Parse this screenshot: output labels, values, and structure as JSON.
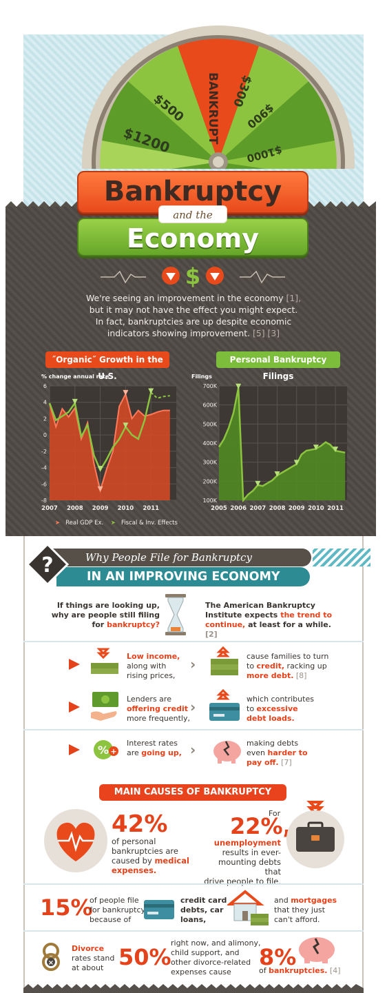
{
  "header": {
    "wheel_labels": [
      "BANKRUPT",
      "$1200",
      "$500",
      "$300",
      "$900",
      "$1000"
    ],
    "title_top": "Bankruptcy",
    "title_and": "and the",
    "title_bottom": "Economy"
  },
  "intro": {
    "line1": "We're seeing an improvement in the economy",
    "ref1": "[1],",
    "line2": "but it may not have the effect you might expect.",
    "line3": "In fact, bankruptcies are up despite economic",
    "line4": "indicators showing improvement.",
    "ref2": "[5] [3]"
  },
  "charts": {
    "left_title": "˝Organic˝ Growth in the U.S.",
    "left_axis_caption": "% change annual rate",
    "right_title": "Personal Bankruptcy Filings",
    "right_axis_caption": "Filings",
    "legend_1": "Real GDP Ex.",
    "legend_2": "Fiscal & Inv. Effects"
  },
  "chart_data": [
    {
      "type": "area",
      "title": "˝Organic˝ Growth in the U.S.",
      "ylabel": "% change annual rate",
      "ylim": [
        -8,
        6
      ],
      "yticks": [
        6,
        4,
        2,
        0,
        -2,
        -4,
        -6,
        -8
      ],
      "xticks": [
        "2007",
        "2008",
        "2009",
        "2010",
        "2011"
      ],
      "series": [
        {
          "name": "Real GDP Ex.",
          "x": [
            2007,
            2007.25,
            2007.5,
            2007.75,
            2008,
            2008.25,
            2008.5,
            2008.75,
            2009,
            2009.25,
            2009.5,
            2009.75,
            2010,
            2010.25,
            2010.5,
            2010.75,
            2011,
            2011.25,
            2011.5,
            2011.75
          ],
          "values": [
            3.8,
            1.0,
            3.2,
            2.2,
            3.3,
            -0.5,
            1.5,
            -3.5,
            -6.8,
            -4.2,
            -2.0,
            3.5,
            5.0,
            2.0,
            3.0,
            2.3,
            2.5,
            2.8,
            3.0,
            3.0
          ]
        },
        {
          "name": "Fiscal & Inv. Effects",
          "x": [
            2007,
            2007.25,
            2007.5,
            2007.75,
            2008,
            2008.25,
            2008.5,
            2008.75,
            2009,
            2009.25,
            2009.5,
            2009.75,
            2010,
            2010.25,
            2010.5,
            2010.75,
            2011,
            2011.25,
            2011.5,
            2011.75
          ],
          "values": [
            3.9,
            1.8,
            2.3,
            2.8,
            3.9,
            -0.2,
            1.2,
            -2.5,
            -4.3,
            -3.0,
            -1.5,
            -0.5,
            1.0,
            0.0,
            -0.5,
            1.8,
            5.2,
            4.5,
            4.7,
            4.8
          ]
        }
      ]
    },
    {
      "type": "area",
      "title": "Personal Bankruptcy Filings",
      "ylabel": "Filings",
      "ylim": [
        100000,
        700000
      ],
      "yticks": [
        "700K",
        "600K",
        "500K",
        "400K",
        "300K",
        "200K",
        "100K"
      ],
      "xticks": [
        "2005",
        "2006",
        "2007",
        "2008",
        "2009",
        "2010",
        "2011"
      ],
      "series": [
        {
          "name": "Personal Bankruptcy Filings",
          "x": [
            2005,
            2005.25,
            2005.5,
            2005.75,
            2006,
            2006.25,
            2006.5,
            2006.75,
            2007,
            2007.25,
            2007.5,
            2007.75,
            2008,
            2008.25,
            2008.5,
            2008.75,
            2009,
            2009.25,
            2009.5,
            2009.75,
            2010,
            2010.25,
            2010.5,
            2010.75,
            2011,
            2011.25,
            2011.5
          ],
          "values": [
            380000,
            420000,
            480000,
            560000,
            690000,
            100000,
            130000,
            150000,
            180000,
            175000,
            190000,
            205000,
            230000,
            245000,
            260000,
            275000,
            290000,
            340000,
            360000,
            365000,
            370000,
            385000,
            405000,
            390000,
            360000,
            355000,
            350000
          ]
        }
      ]
    }
  ],
  "why": {
    "head1": "Why People File for Bankruptcy",
    "head2": "IN AN IMPROVING ECONOMY",
    "question_a": "If things are looking up,",
    "question_b": "why are people still filing",
    "question_c": "for",
    "question_red": "bankruptcy?",
    "abi_a": "The American Bankruptcy",
    "abi_b": "Institute expects",
    "abi_red1": "the trend to",
    "abi_red2": "continue,",
    "abi_c": "at least for a while.",
    "abi_ref": "[2]"
  },
  "rows": [
    {
      "left_red": "Low income,",
      "left_a": "along with",
      "left_b": "rising prices,",
      "right_a": "cause families to turn",
      "right_b": "to",
      "right_red1": "credit,",
      "right_c": "racking up",
      "right_red2": "more debt.",
      "right_ref": "[8]"
    },
    {
      "left_a": "Lenders are",
      "left_red1": "offering credit",
      "left_b": "more frequently,",
      "right_a": "which contributes",
      "right_b": "to",
      "right_red1": "excessive",
      "right_red2": "debt loads."
    },
    {
      "left_a": "Interest rates",
      "left_b": "are",
      "left_red": "going up,",
      "right_a": "making debts",
      "right_b": "even",
      "right_red1": "harder to",
      "right_red2": "pay off.",
      "right_ref": "[7]"
    }
  ],
  "causes": {
    "title": "MAIN CAUSES OF BANKRUPTCY",
    "medical_pct": "42%",
    "medical_a": "of personal",
    "medical_b": "bankruptcies are",
    "medical_c": "caused by",
    "medical_red": "medical",
    "medical_red2": "expenses.",
    "unemp_for": "For",
    "unemp_pct": "22%,",
    "unemp_red": "unemployment",
    "unemp_a": "results in ever-",
    "unemp_b": "mounting debts that",
    "unemp_c": "drive people to file.",
    "credit_pct": "15%",
    "credit_a": "of people file",
    "credit_b": "for bankruptcy",
    "credit_c": "because of",
    "credit_red1": "credit card",
    "credit_red2": "debts, car",
    "credit_red3": "loans,",
    "mort_a": "and",
    "mort_red": "mortgages",
    "mort_b": "that they just",
    "mort_c": "can't afford.",
    "div_red": "Divorce",
    "div_a": "rates stand",
    "div_b": "at about",
    "div_pct": "50%",
    "div_c": "right now, and alimony,",
    "div_d": "child support, and",
    "div_e": "other divorce-related",
    "div_f": "expenses cause",
    "div_pct2": "8%",
    "div_g": "of",
    "div_red2": "bankruptcies.",
    "div_ref": "[4]"
  },
  "colors": {
    "red": "#e4421b",
    "green": "#7cbd3c",
    "teal": "#2c8b93",
    "brown": "#56504b"
  },
  "icons": [
    "wheel-icon",
    "dollar-icon",
    "hourglass-icon",
    "money-stack-icon",
    "cash-hand-icon",
    "credit-card-icon",
    "percent-icon",
    "piggy-bank-icon",
    "heart-icon",
    "briefcase-icon",
    "house-icon",
    "rings-icon",
    "question-mark-icon"
  ]
}
